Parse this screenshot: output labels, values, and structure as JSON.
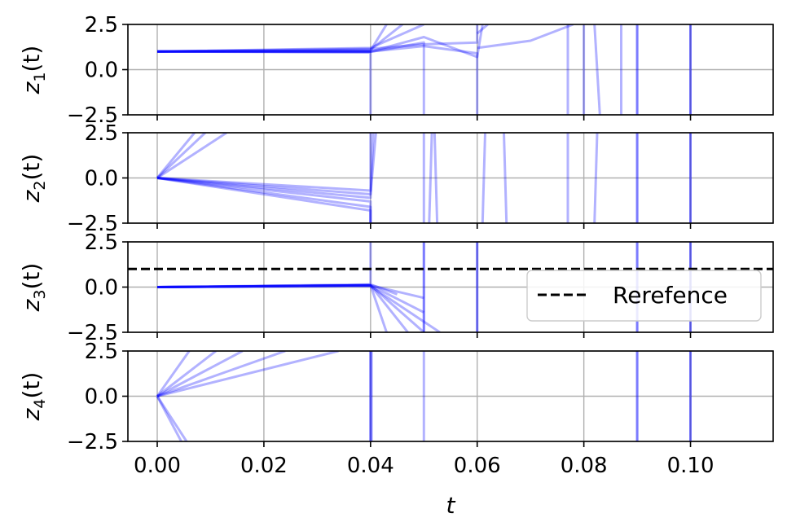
{
  "chart_data": {
    "type": "line",
    "xlabel": "t",
    "xlim": [
      -0.0055,
      0.1155
    ],
    "xticks": [
      0.0,
      0.02,
      0.04,
      0.06,
      0.08,
      0.1
    ],
    "xtick_labels": [
      "0.00",
      "0.02",
      "0.04",
      "0.06",
      "0.08",
      "0.10"
    ],
    "grid": true,
    "series_color": "#0000ff",
    "reference_color": "#000000",
    "legend": {
      "label": "Rerefence",
      "placement": "right"
    },
    "panels": [
      {
        "ylabel": "z",
        "ylabel_sub": "1",
        "ylabel_tail": "(t)",
        "ylim": [
          -2.5,
          2.5
        ],
        "yticks": [
          2.5,
          0.0,
          -2.5
        ],
        "ytick_labels": [
          "2.5",
          "0.0",
          "−2.5"
        ],
        "lines": [
          {
            "x": [
              0,
              0.04,
              0.04
            ],
            "y": [
              1.0,
              0.95,
              -2.5
            ]
          },
          {
            "x": [
              0,
              0.04,
              0.05,
              0.05
            ],
            "y": [
              1.0,
              0.98,
              1.5,
              -2.5
            ]
          },
          {
            "x": [
              0,
              0.04,
              0.05,
              0.06,
              0.06
            ],
            "y": [
              1.0,
              1.0,
              1.3,
              0.9,
              -2.5
            ]
          },
          {
            "x": [
              0,
              0.04,
              0.043
            ],
            "y": [
              1.0,
              1.05,
              2.5
            ]
          },
          {
            "x": [
              0,
              0.04,
              0.046
            ],
            "y": [
              1.0,
              1.1,
              2.5
            ]
          },
          {
            "x": [
              0,
              0.04,
              0.05
            ],
            "y": [
              1.0,
              1.2,
              2.5
            ]
          },
          {
            "x": [
              0,
              0.04,
              0.05,
              0.06,
              0.06
            ],
            "y": [
              1.0,
              1.15,
              1.4,
              1.5,
              2.5
            ]
          },
          {
            "x": [
              0,
              0.04,
              0.05,
              0.06,
              0.061
            ],
            "y": [
              1.0,
              1.0,
              1.8,
              0.7,
              2.5
            ]
          },
          {
            "x": [
              0.06,
              0.062
            ],
            "y": [
              2.0,
              2.5
            ]
          },
          {
            "x": [
              0.06,
              0.07,
              0.078
            ],
            "y": [
              1.2,
              1.6,
              2.5
            ]
          },
          {
            "x": [
              0.077,
              0.077
            ],
            "y": [
              -2.5,
              2.5
            ]
          },
          {
            "x": [
              0.08,
              0.08
            ],
            "y": [
              2.5,
              -2.5
            ]
          },
          {
            "x": [
              0.082,
              0.083
            ],
            "y": [
              2.5,
              -2.5
            ]
          },
          {
            "x": [
              0.087,
              0.087
            ],
            "y": [
              -2.5,
              2.5
            ]
          },
          {
            "x": [
              0.09,
              0.09
            ],
            "y": [
              -2.5,
              2.5
            ]
          },
          {
            "x": [
              0.09,
              0.09
            ],
            "y": [
              2.5,
              -2.5
            ]
          },
          {
            "x": [
              0.1,
              0.1
            ],
            "y": [
              -2.5,
              2.5
            ]
          },
          {
            "x": [
              0.1,
              0.1
            ],
            "y": [
              2.5,
              -2.5
            ]
          },
          {
            "x": [
              0.0,
              0.04
            ],
            "y": [
              1.0,
              1.0
            ]
          }
        ],
        "reference": null
      },
      {
        "ylabel": "z",
        "ylabel_sub": "2",
        "ylabel_tail": "(t)",
        "ylim": [
          -2.5,
          2.5
        ],
        "yticks": [
          2.5,
          0.0,
          -2.5
        ],
        "ytick_labels": [
          "2.5",
          "0.0",
          "−2.5"
        ],
        "lines": [
          {
            "x": [
              0,
              0.009
            ],
            "y": [
              0,
              2.5
            ]
          },
          {
            "x": [
              0,
              0.013
            ],
            "y": [
              0,
              2.5
            ]
          },
          {
            "x": [
              0,
              0.007
            ],
            "y": [
              0,
              2.5
            ]
          },
          {
            "x": [
              0,
              0.04,
              0.04
            ],
            "y": [
              0,
              -0.7,
              2.5
            ]
          },
          {
            "x": [
              0,
              0.04,
              0.041
            ],
            "y": [
              0,
              -0.9,
              2.5
            ]
          },
          {
            "x": [
              0,
              0.04,
              0.0405
            ],
            "y": [
              0,
              -1.1,
              2.5
            ]
          },
          {
            "x": [
              0,
              0.04,
              0.04
            ],
            "y": [
              0,
              -1.3,
              -2.5
            ]
          },
          {
            "x": [
              0,
              0.04,
              0.04
            ],
            "y": [
              0,
              -1.6,
              -2.5
            ]
          },
          {
            "x": [
              0,
              0.04,
              0.04
            ],
            "y": [
              0,
              -1.8,
              -2.5
            ]
          },
          {
            "x": [
              0.05,
              0.05
            ],
            "y": [
              2.5,
              -2.5
            ]
          },
          {
            "x": [
              0.051,
              0.0515
            ],
            "y": [
              -2.5,
              2.5
            ]
          },
          {
            "x": [
              0.052,
              0.0525
            ],
            "y": [
              2.5,
              -2.5
            ]
          },
          {
            "x": [
              0.061,
              0.0615
            ],
            "y": [
              -2.5,
              2.5
            ]
          },
          {
            "x": [
              0.065,
              0.0655
            ],
            "y": [
              2.5,
              -2.5
            ]
          },
          {
            "x": [
              0.077,
              0.077
            ],
            "y": [
              2.5,
              -2.5
            ]
          },
          {
            "x": [
              0.082,
              0.0825
            ],
            "y": [
              -2.5,
              2.5
            ]
          },
          {
            "x": [
              0.09,
              0.09
            ],
            "y": [
              2.5,
              -2.5
            ]
          },
          {
            "x": [
              0.09,
              0.09
            ],
            "y": [
              -2.5,
              2.5
            ]
          },
          {
            "x": [
              0.1,
              0.1
            ],
            "y": [
              2.5,
              -2.5
            ]
          },
          {
            "x": [
              0.1,
              0.1
            ],
            "y": [
              -2.5,
              2.5
            ]
          }
        ],
        "reference": null
      },
      {
        "ylabel": "z",
        "ylabel_sub": "3",
        "ylabel_tail": "(t)",
        "ylim": [
          -2.5,
          2.5
        ],
        "yticks": [
          2.5,
          0.0,
          -2.5
        ],
        "ytick_labels": [
          "2.5",
          "0.0",
          "−2.5"
        ],
        "lines": [
          {
            "x": [
              0,
              0.04,
              0.05
            ],
            "y": [
              0,
              0.1,
              -0.6
            ]
          },
          {
            "x": [
              0,
              0.04,
              0.045
            ],
            "y": [
              0,
              0.15,
              -0.4
            ]
          },
          {
            "x": [
              0,
              0.04,
              0.05
            ],
            "y": [
              0,
              0.1,
              -1.4
            ]
          },
          {
            "x": [
              0,
              0.04,
              0.05
            ],
            "y": [
              0,
              0.1,
              -2.5
            ]
          },
          {
            "x": [
              0,
              0.04,
              0.053
            ],
            "y": [
              0,
              0.05,
              -2.5
            ]
          },
          {
            "x": [
              0,
              0.04,
              0.047
            ],
            "y": [
              0,
              0.1,
              -2.5
            ]
          },
          {
            "x": [
              0,
              0.04,
              0.043
            ],
            "y": [
              0,
              0.1,
              -2.5
            ]
          },
          {
            "x": [
              0.04,
              0.04
            ],
            "y": [
              0.2,
              2.5
            ]
          },
          {
            "x": [
              0.05,
              0.05
            ],
            "y": [
              -2.5,
              2.5
            ]
          },
          {
            "x": [
              0.05,
              0.05
            ],
            "y": [
              2.5,
              -2.5
            ]
          },
          {
            "x": [
              0.06,
              0.06
            ],
            "y": [
              -2.5,
              2.5
            ]
          },
          {
            "x": [
              0.06,
              0.06
            ],
            "y": [
              2.5,
              -2.5
            ]
          },
          {
            "x": [
              0.09,
              0.09
            ],
            "y": [
              -2.5,
              2.5
            ]
          },
          {
            "x": [
              0.09,
              0.09
            ],
            "y": [
              2.5,
              -2.5
            ]
          },
          {
            "x": [
              0.1,
              0.1
            ],
            "y": [
              -2.5,
              2.5
            ]
          },
          {
            "x": [
              0.1,
              0.1
            ],
            "y": [
              2.5,
              -2.5
            ]
          },
          {
            "x": [
              0.0,
              0.04
            ],
            "y": [
              0.0,
              0.1
            ]
          }
        ],
        "reference": {
          "y": 1.0
        }
      },
      {
        "ylabel": "z",
        "ylabel_sub": "4",
        "ylabel_tail": "(t)",
        "ylim": [
          -2.5,
          2.5
        ],
        "yticks": [
          2.5,
          0.0,
          -2.5
        ],
        "ytick_labels": [
          "2.5",
          "0.0",
          "−2.5"
        ],
        "lines": [
          {
            "x": [
              0,
              0.006
            ],
            "y": [
              0,
              2.5
            ]
          },
          {
            "x": [
              0,
              0.011
            ],
            "y": [
              0,
              2.5
            ]
          },
          {
            "x": [
              0,
              0.016
            ],
            "y": [
              0,
              2.5
            ]
          },
          {
            "x": [
              0,
              0.024
            ],
            "y": [
              0,
              2.5
            ]
          },
          {
            "x": [
              0,
              0.034
            ],
            "y": [
              0,
              2.5
            ]
          },
          {
            "x": [
              0,
              0.0045
            ],
            "y": [
              0,
              -2.5
            ]
          },
          {
            "x": [
              0,
              0.0055
            ],
            "y": [
              0,
              -2.5
            ]
          },
          {
            "x": [
              0.04,
              0.04
            ],
            "y": [
              2.5,
              -2.5
            ]
          },
          {
            "x": [
              0.04,
              0.04
            ],
            "y": [
              -2.5,
              2.5
            ]
          },
          {
            "x": [
              0.0402,
              0.0402
            ],
            "y": [
              2.5,
              -2.5
            ]
          },
          {
            "x": [
              0.05,
              0.05
            ],
            "y": [
              2.5,
              -2.5
            ]
          },
          {
            "x": [
              0.09,
              0.09
            ],
            "y": [
              2.5,
              -2.5
            ]
          },
          {
            "x": [
              0.09,
              0.09
            ],
            "y": [
              -2.5,
              2.5
            ]
          },
          {
            "x": [
              0.1,
              0.1
            ],
            "y": [
              2.5,
              -2.5
            ]
          },
          {
            "x": [
              0.1,
              0.1
            ],
            "y": [
              -2.5,
              2.5
            ]
          }
        ],
        "reference": null
      }
    ]
  }
}
